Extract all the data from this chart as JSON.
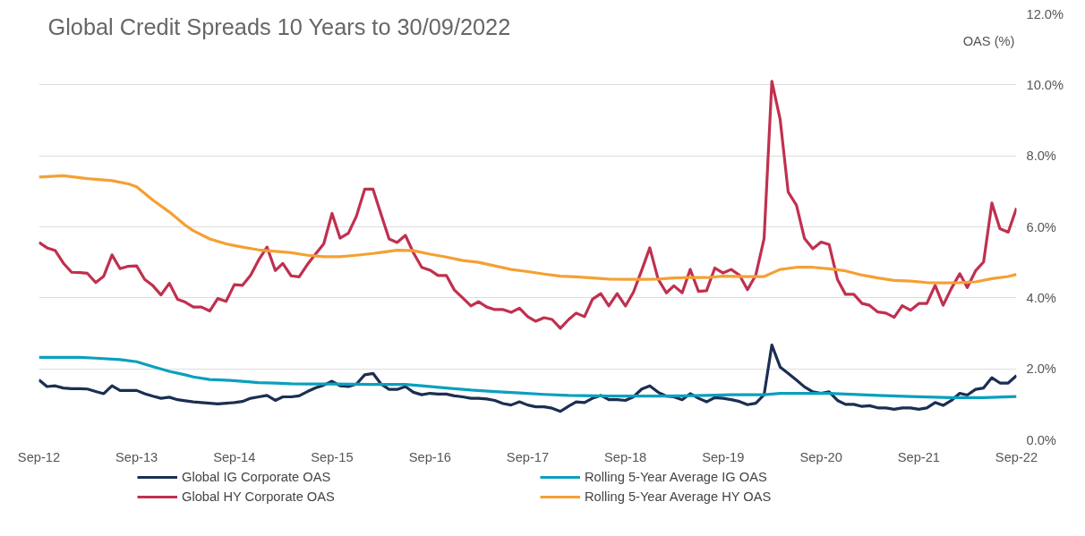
{
  "chart_data": {
    "type": "line",
    "title": "Global Credit Spreads 10 Years to 30/09/2022",
    "ylabel": "OAS (%)",
    "x": [
      "2012-09",
      "2012-10",
      "2012-11",
      "2012-12",
      "2013-01",
      "2013-02",
      "2013-03",
      "2013-04",
      "2013-05",
      "2013-06",
      "2013-07",
      "2013-08",
      "2013-09",
      "2013-10",
      "2013-11",
      "2013-12",
      "2014-01",
      "2014-02",
      "2014-03",
      "2014-04",
      "2014-05",
      "2014-06",
      "2014-07",
      "2014-08",
      "2014-09",
      "2014-10",
      "2014-11",
      "2014-12",
      "2015-01",
      "2015-02",
      "2015-03",
      "2015-04",
      "2015-05",
      "2015-06",
      "2015-07",
      "2015-08",
      "2015-09",
      "2015-10",
      "2015-11",
      "2015-12",
      "2016-01",
      "2016-02",
      "2016-03",
      "2016-04",
      "2016-05",
      "2016-06",
      "2016-07",
      "2016-08",
      "2016-09",
      "2016-10",
      "2016-11",
      "2016-12",
      "2017-01",
      "2017-02",
      "2017-03",
      "2017-04",
      "2017-05",
      "2017-06",
      "2017-07",
      "2017-08",
      "2017-09",
      "2017-10",
      "2017-11",
      "2017-12",
      "2018-01",
      "2018-02",
      "2018-03",
      "2018-04",
      "2018-05",
      "2018-06",
      "2018-07",
      "2018-08",
      "2018-09",
      "2018-10",
      "2018-11",
      "2018-12",
      "2019-01",
      "2019-02",
      "2019-03",
      "2019-04",
      "2019-05",
      "2019-06",
      "2019-07",
      "2019-08",
      "2019-09",
      "2019-10",
      "2019-11",
      "2019-12",
      "2020-01",
      "2020-02",
      "2020-03",
      "2020-04",
      "2020-05",
      "2020-06",
      "2020-07",
      "2020-08",
      "2020-09",
      "2020-10",
      "2020-11",
      "2020-12",
      "2021-01",
      "2021-02",
      "2021-03",
      "2021-04",
      "2021-05",
      "2021-06",
      "2021-07",
      "2021-08",
      "2021-09",
      "2021-10",
      "2021-11",
      "2021-12",
      "2022-01",
      "2022-02",
      "2022-03",
      "2022-04",
      "2022-05",
      "2022-06",
      "2022-07",
      "2022-08",
      "2022-09"
    ],
    "series": [
      {
        "name": "Global IG Corporate OAS",
        "color": "#1b2f52",
        "values": [
          1.69,
          1.5,
          1.52,
          1.46,
          1.44,
          1.44,
          1.43,
          1.36,
          1.3,
          1.52,
          1.39,
          1.39,
          1.39,
          1.3,
          1.23,
          1.17,
          1.2,
          1.13,
          1.1,
          1.07,
          1.05,
          1.03,
          1.01,
          1.03,
          1.05,
          1.08,
          1.17,
          1.21,
          1.25,
          1.11,
          1.21,
          1.21,
          1.24,
          1.36,
          1.46,
          1.54,
          1.65,
          1.52,
          1.5,
          1.57,
          1.83,
          1.87,
          1.58,
          1.42,
          1.42,
          1.5,
          1.34,
          1.27,
          1.31,
          1.29,
          1.29,
          1.24,
          1.21,
          1.17,
          1.17,
          1.15,
          1.11,
          1.02,
          0.98,
          1.07,
          0.98,
          0.93,
          0.93,
          0.89,
          0.8,
          0.95,
          1.07,
          1.05,
          1.17,
          1.25,
          1.13,
          1.13,
          1.11,
          1.21,
          1.43,
          1.52,
          1.34,
          1.23,
          1.21,
          1.13,
          1.3,
          1.17,
          1.07,
          1.19,
          1.17,
          1.13,
          1.08,
          0.99,
          1.03,
          1.27,
          2.67,
          2.05,
          1.87,
          1.68,
          1.49,
          1.35,
          1.31,
          1.35,
          1.11,
          1.0,
          1.0,
          0.94,
          0.96,
          0.9,
          0.9,
          0.86,
          0.9,
          0.9,
          0.86,
          0.9,
          1.05,
          0.97,
          1.11,
          1.31,
          1.26,
          1.42,
          1.46,
          1.75,
          1.6,
          1.6,
          1.81
        ]
      },
      {
        "name": "Rolling 5-Year Average IG OAS",
        "color": "#0aa0bf",
        "x": [
          "2012-09",
          "2013-02",
          "2013-04",
          "2013-07",
          "2013-09",
          "2013-11",
          "2014-01",
          "2014-03",
          "2014-04",
          "2014-06",
          "2014-08",
          "2014-10",
          "2014-12",
          "2015-02",
          "2015-04",
          "2015-06",
          "2015-09",
          "2016-02",
          "2016-06",
          "2016-08",
          "2016-11",
          "2017-02",
          "2017-05",
          "2017-08",
          "2017-11",
          "2018-02",
          "2018-07",
          "2019-01",
          "2019-07",
          "2019-10",
          "2020-02",
          "2020-04",
          "2020-10",
          "2021-04",
          "2021-08",
          "2022-01",
          "2022-05",
          "2022-09"
        ],
        "values": [
          2.32,
          2.32,
          2.3,
          2.26,
          2.2,
          2.06,
          1.93,
          1.83,
          1.77,
          1.7,
          1.68,
          1.65,
          1.61,
          1.6,
          1.58,
          1.57,
          1.57,
          1.56,
          1.56,
          1.52,
          1.46,
          1.4,
          1.36,
          1.32,
          1.28,
          1.25,
          1.23,
          1.23,
          1.25,
          1.27,
          1.27,
          1.31,
          1.31,
          1.25,
          1.22,
          1.19,
          1.19,
          1.22
        ]
      },
      {
        "name": "Global HY Corporate OAS",
        "color": "#c0304f",
        "values": [
          5.56,
          5.41,
          5.33,
          4.98,
          4.72,
          4.71,
          4.69,
          4.43,
          4.61,
          5.21,
          4.82,
          4.89,
          4.9,
          4.52,
          4.34,
          4.08,
          4.41,
          3.96,
          3.88,
          3.74,
          3.74,
          3.63,
          3.98,
          3.9,
          4.37,
          4.35,
          4.64,
          5.07,
          5.43,
          4.77,
          4.97,
          4.62,
          4.59,
          4.94,
          5.23,
          5.52,
          6.38,
          5.68,
          5.82,
          6.3,
          7.06,
          7.06,
          6.38,
          5.66,
          5.56,
          5.76,
          5.27,
          4.86,
          4.78,
          4.63,
          4.63,
          4.22,
          4.0,
          3.77,
          3.89,
          3.74,
          3.67,
          3.67,
          3.59,
          3.71,
          3.47,
          3.34,
          3.44,
          3.39,
          3.14,
          3.39,
          3.57,
          3.47,
          3.96,
          4.12,
          3.77,
          4.12,
          3.77,
          4.16,
          4.78,
          5.41,
          4.53,
          4.14,
          4.34,
          4.14,
          4.8,
          4.18,
          4.2,
          4.84,
          4.7,
          4.8,
          4.64,
          4.23,
          4.64,
          5.67,
          10.1,
          9.03,
          6.98,
          6.61,
          5.67,
          5.38,
          5.57,
          5.5,
          4.52,
          4.1,
          4.1,
          3.84,
          3.79,
          3.6,
          3.57,
          3.45,
          3.78,
          3.65,
          3.84,
          3.84,
          4.35,
          3.79,
          4.27,
          4.68,
          4.29,
          4.76,
          5.01,
          6.67,
          5.95,
          5.85,
          6.53
        ]
      },
      {
        "name": "Rolling 5-Year Average HY OAS",
        "color": "#f5a033",
        "x": [
          "2012-09",
          "2012-12",
          "2013-03",
          "2013-06",
          "2013-08",
          "2013-09",
          "2013-11",
          "2014-01",
          "2014-03",
          "2014-04",
          "2014-06",
          "2014-08",
          "2014-10",
          "2014-12",
          "2015-02",
          "2015-04",
          "2015-06",
          "2015-08",
          "2015-10",
          "2015-12",
          "2016-02",
          "2016-03",
          "2016-05",
          "2016-07",
          "2016-09",
          "2016-11",
          "2017-01",
          "2017-03",
          "2017-05",
          "2017-07",
          "2017-09",
          "2017-11",
          "2018-01",
          "2018-03",
          "2018-05",
          "2018-07",
          "2018-09",
          "2018-11",
          "2019-01",
          "2019-03",
          "2019-05",
          "2019-07",
          "2019-09",
          "2019-12",
          "2020-02",
          "2020-04",
          "2020-06",
          "2020-08",
          "2020-10",
          "2020-12",
          "2021-02",
          "2021-04",
          "2021-06",
          "2021-08",
          "2021-10",
          "2021-12",
          "2022-02",
          "2022-04",
          "2022-06",
          "2022-08",
          "2022-09"
        ],
        "values": [
          7.4,
          7.44,
          7.36,
          7.3,
          7.21,
          7.13,
          6.75,
          6.42,
          6.05,
          5.89,
          5.66,
          5.52,
          5.43,
          5.35,
          5.31,
          5.27,
          5.2,
          5.16,
          5.16,
          5.2,
          5.25,
          5.28,
          5.34,
          5.33,
          5.23,
          5.15,
          5.05,
          5.0,
          4.9,
          4.8,
          4.74,
          4.67,
          4.61,
          4.59,
          4.56,
          4.53,
          4.52,
          4.52,
          4.53,
          4.56,
          4.57,
          4.57,
          4.61,
          4.6,
          4.6,
          4.8,
          4.86,
          4.86,
          4.82,
          4.76,
          4.64,
          4.56,
          4.49,
          4.47,
          4.43,
          4.42,
          4.43,
          4.45,
          4.54,
          4.6,
          4.66
        ]
      }
    ],
    "xlim": [
      "2012-09",
      "2022-09"
    ],
    "xticks": [
      {
        "value": "2012-09",
        "label": "Sep-12"
      },
      {
        "value": "2013-09",
        "label": "Sep-13"
      },
      {
        "value": "2014-09",
        "label": "Sep-14"
      },
      {
        "value": "2015-09",
        "label": "Sep-15"
      },
      {
        "value": "2016-09",
        "label": "Sep-16"
      },
      {
        "value": "2017-09",
        "label": "Sep-17"
      },
      {
        "value": "2018-09",
        "label": "Sep-18"
      },
      {
        "value": "2019-09",
        "label": "Sep-19"
      },
      {
        "value": "2020-09",
        "label": "Sep-20"
      },
      {
        "value": "2021-09",
        "label": "Sep-21"
      },
      {
        "value": "2022-09",
        "label": "Sep-22"
      }
    ],
    "ylim": [
      0,
      12
    ],
    "yticks": [
      {
        "value": 0,
        "label": "0.0%"
      },
      {
        "value": 2,
        "label": "2.0%"
      },
      {
        "value": 4,
        "label": "4.0%"
      },
      {
        "value": 6,
        "label": "6.0%"
      },
      {
        "value": 8,
        "label": "8.0%"
      },
      {
        "value": 10,
        "label": "10.0%"
      },
      {
        "value": 12,
        "label": "12.0%"
      }
    ],
    "grid": "y",
    "legend": "bottom",
    "marker": "none",
    "line_style": "solid"
  }
}
